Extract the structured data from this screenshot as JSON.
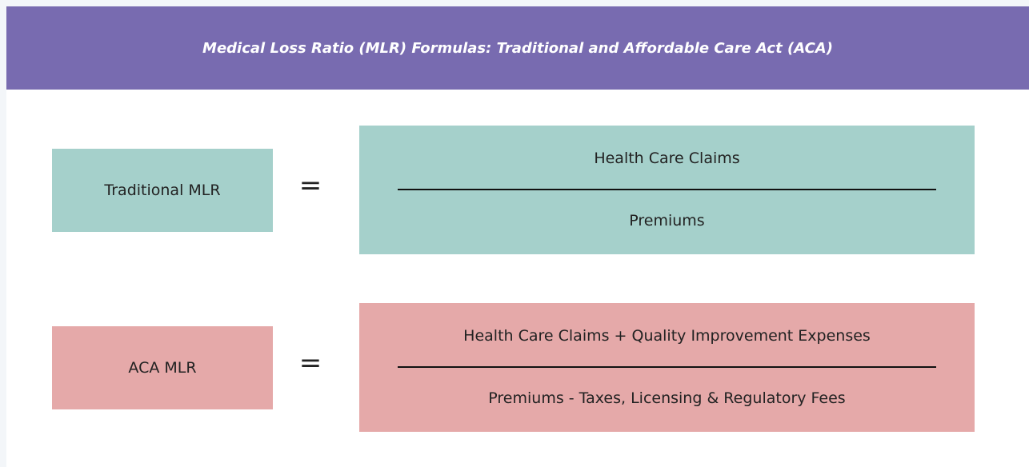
{
  "header": {
    "title": "Medical Loss Ratio (MLR) Formulas: Traditional and Affordable Care Act (ACA)"
  },
  "formulas": [
    {
      "label": "Traditional MLR",
      "operator": "=",
      "numerator": "Health Care Claims",
      "denominator": "Premiums"
    },
    {
      "label": "ACA MLR",
      "operator": "=",
      "numerator": "Health Care Claims + Quality Improvement Expenses",
      "denominator": "Premiums - Taxes, Licensing & Regulatory Fees"
    }
  ]
}
